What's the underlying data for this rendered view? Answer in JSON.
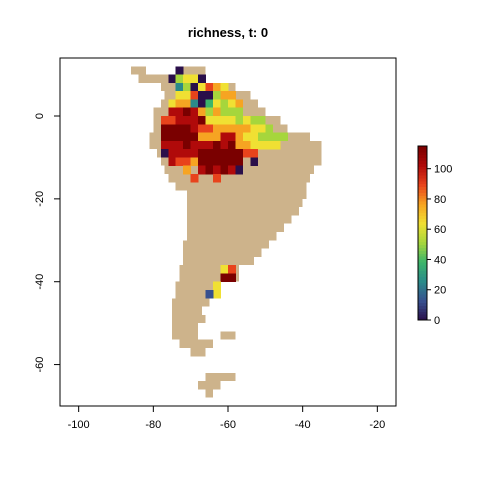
{
  "title": "richness, t: 0",
  "colors": {
    "land": "#cdb38b",
    "frame": "#000000",
    "background": "#ffffff"
  },
  "chart_data": {
    "type": "heatmap",
    "title": "richness, t: 0",
    "xlabel": "",
    "ylabel": "",
    "xlim": [
      -105,
      -15
    ],
    "ylim": [
      -70,
      14
    ],
    "x_ticks": [
      -100,
      -80,
      -60,
      -40,
      -20
    ],
    "y_ticks": [
      0,
      -20,
      -40,
      -60
    ],
    "colorbar": {
      "min": 0,
      "max": 115,
      "ticks": [
        0,
        20,
        40,
        60,
        80,
        100
      ],
      "palette": [
        "#2a0f4a",
        "#37508f",
        "#2a8a8a",
        "#3bb56b",
        "#a6d63c",
        "#f0e033",
        "#f6a422",
        "#e8431c",
        "#b00a0a",
        "#7a0000"
      ]
    },
    "cell_size_deg": 2,
    "richness_grid": {
      "lat_top": 12,
      "lon_left": -78,
      "rows": [
        "..0...................",
        ".04550................",
        "..2405765.............",
        "..55700466............",
        ".5662035456...........",
        ".8898646444...........",
        "77888955554544........",
        "999987766666554.......",
        "99999666886554444.....",
        "8889888989665555......",
        "0888899999977.........",
        ".8776999999.0.........",
        "...6.898980...........",
        "....7..7.............."
      ]
    },
    "richness_levels": [
      0,
      15,
      30,
      45,
      60,
      72,
      82,
      90,
      100,
      112
    ],
    "south_cells": [
      {
        "lon": -62,
        "lat": -36,
        "level": 5
      },
      {
        "lon": -60,
        "lat": -36,
        "level": 7
      },
      {
        "lon": -60,
        "lat": -38,
        "level": 9
      },
      {
        "lon": -62,
        "lat": -38,
        "level": 9
      },
      {
        "lon": -64,
        "lat": -40,
        "level": 5
      },
      {
        "lon": -64,
        "lat": -42,
        "level": 5
      },
      {
        "lon": -66,
        "lat": -42,
        "level": 1
      }
    ]
  }
}
